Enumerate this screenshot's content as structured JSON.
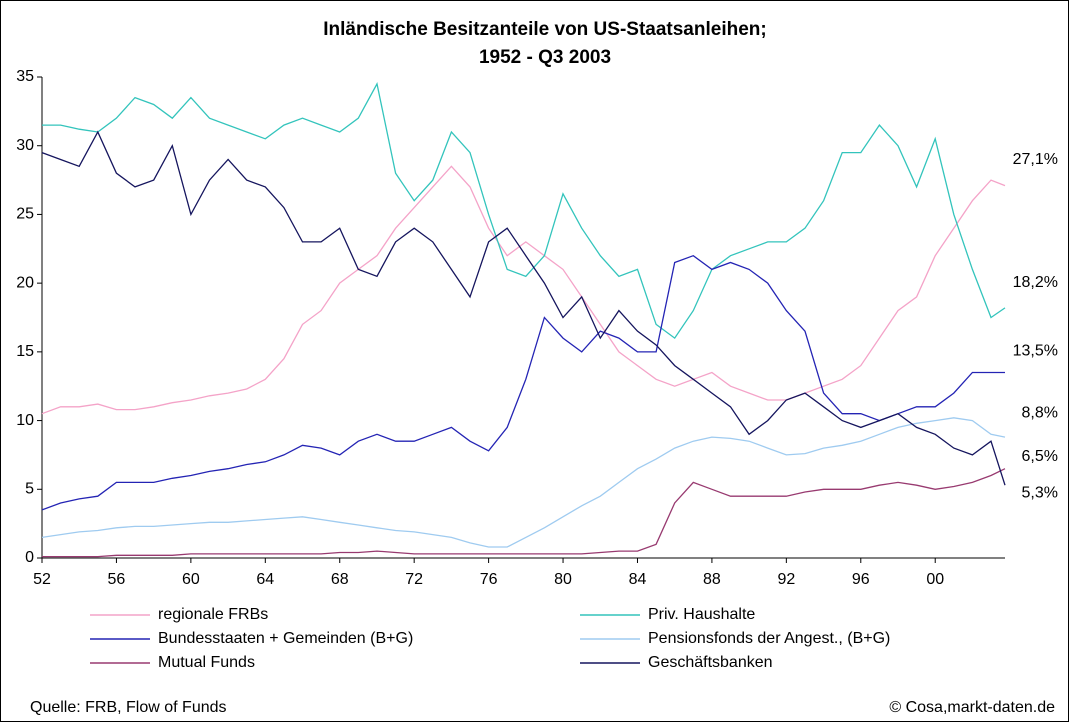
{
  "chart_data": {
    "type": "line",
    "title": "Inländische Besitzanteile von US-Staatsanleihen;",
    "subtitle": "1952 - Q3 2003",
    "source": "Quelle: FRB, Flow of Funds",
    "credit": "© Cosa,markt-daten.de",
    "x": [
      1952,
      1953,
      1954,
      1955,
      1956,
      1957,
      1958,
      1959,
      1960,
      1961,
      1962,
      1963,
      1964,
      1965,
      1966,
      1967,
      1968,
      1969,
      1970,
      1971,
      1972,
      1973,
      1974,
      1975,
      1976,
      1977,
      1978,
      1979,
      1980,
      1981,
      1982,
      1983,
      1984,
      1985,
      1986,
      1987,
      1988,
      1989,
      1990,
      1991,
      1992,
      1993,
      1994,
      1995,
      1996,
      1997,
      1998,
      1999,
      2000,
      2001,
      2002,
      2003,
      2003.75
    ],
    "xlim": [
      1952,
      2003.75
    ],
    "xticks": [
      {
        "value": 1952,
        "label": "52"
      },
      {
        "value": 1956,
        "label": "56"
      },
      {
        "value": 1960,
        "label": "60"
      },
      {
        "value": 1964,
        "label": "64"
      },
      {
        "value": 1968,
        "label": "68"
      },
      {
        "value": 1972,
        "label": "72"
      },
      {
        "value": 1976,
        "label": "76"
      },
      {
        "value": 1980,
        "label": "80"
      },
      {
        "value": 1984,
        "label": "84"
      },
      {
        "value": 1988,
        "label": "88"
      },
      {
        "value": 1992,
        "label": "92"
      },
      {
        "value": 1996,
        "label": "96"
      },
      {
        "value": 2000,
        "label": "00"
      }
    ],
    "ylim": [
      0,
      35
    ],
    "yticks": [
      0,
      5,
      10,
      15,
      20,
      25,
      30,
      35
    ],
    "grid": false,
    "series": [
      {
        "name": "regionale FRBs",
        "color": "#f4a3c8",
        "end_label": "27,1%",
        "values": [
          10.5,
          11,
          11,
          11.2,
          10.8,
          10.8,
          11,
          11.3,
          11.5,
          11.8,
          12,
          12.3,
          13,
          14.5,
          17,
          18,
          20,
          21,
          22,
          24,
          25.5,
          27,
          28.5,
          27,
          24,
          22,
          23,
          22,
          21,
          19,
          17,
          15,
          14,
          13,
          12.5,
          13,
          13.5,
          12.5,
          12,
          11.5,
          11.5,
          12,
          12.5,
          13,
          14,
          16,
          18,
          19,
          22,
          24,
          26,
          27.5,
          27.1
        ]
      },
      {
        "name": "Priv. Haushalte",
        "color": "#33c4bc",
        "end_label": "18,2%",
        "values": [
          31.5,
          31.5,
          31.2,
          31,
          32,
          33.5,
          33,
          32,
          33.5,
          32,
          31.5,
          31,
          30.5,
          31.5,
          32,
          31.5,
          31,
          32,
          34.5,
          28,
          26,
          27.5,
          31,
          29.5,
          25,
          21,
          20.5,
          22,
          26.5,
          24,
          22,
          20.5,
          21,
          17,
          16,
          18,
          21,
          22,
          22.5,
          23,
          23,
          24,
          26,
          29.5,
          29.5,
          31.5,
          30,
          27,
          30.5,
          25,
          21,
          17.5,
          18.2
        ]
      },
      {
        "name": "Bundesstaaten + Gemeinden (B+G)",
        "color": "#2424b4",
        "end_label": "13,5%",
        "values": [
          3.5,
          4,
          4.3,
          4.5,
          5.5,
          5.5,
          5.5,
          5.8,
          6,
          6.3,
          6.5,
          6.8,
          7,
          7.5,
          8.2,
          8,
          7.5,
          8.5,
          9,
          8.5,
          8.5,
          9,
          9.5,
          8.5,
          7.8,
          9.5,
          13,
          17.5,
          16,
          15,
          16.5,
          16,
          15,
          15,
          21.5,
          22,
          21,
          21.5,
          21,
          20,
          18,
          16.5,
          12,
          10.5,
          10.5,
          10,
          10.5,
          11,
          11,
          12,
          13.5,
          13.5,
          13.5
        ]
      },
      {
        "name": "Pensionsfonds der Angest., (B+G)",
        "color": "#9fcbf0",
        "end_label": "8,8%",
        "values": [
          1.5,
          1.7,
          1.9,
          2,
          2.2,
          2.3,
          2.3,
          2.4,
          2.5,
          2.6,
          2.6,
          2.7,
          2.8,
          2.9,
          3,
          2.8,
          2.6,
          2.4,
          2.2,
          2,
          1.9,
          1.7,
          1.5,
          1.1,
          0.8,
          0.8,
          1.5,
          2.2,
          3,
          3.8,
          4.5,
          5.5,
          6.5,
          7.2,
          8,
          8.5,
          8.8,
          8.7,
          8.5,
          8,
          7.5,
          7.6,
          8,
          8.2,
          8.5,
          9,
          9.5,
          9.8,
          10,
          10.2,
          10,
          9,
          8.8
        ]
      },
      {
        "name": "Mutual Funds",
        "color": "#983a70",
        "end_label": "6,5%",
        "values": [
          0.1,
          0.1,
          0.1,
          0.1,
          0.2,
          0.2,
          0.2,
          0.2,
          0.3,
          0.3,
          0.3,
          0.3,
          0.3,
          0.3,
          0.3,
          0.3,
          0.4,
          0.4,
          0.5,
          0.4,
          0.3,
          0.3,
          0.3,
          0.3,
          0.3,
          0.3,
          0.3,
          0.3,
          0.3,
          0.3,
          0.4,
          0.5,
          0.5,
          1,
          4,
          5.5,
          5,
          4.5,
          4.5,
          4.5,
          4.5,
          4.8,
          5,
          5,
          5,
          5.3,
          5.5,
          5.3,
          5,
          5.2,
          5.5,
          6,
          6.5
        ]
      },
      {
        "name": "Geschäftsbanken",
        "color": "#15155e",
        "end_label": "5,3%",
        "values": [
          29.5,
          29,
          28.5,
          31,
          28,
          27,
          27.5,
          30,
          25,
          27.5,
          29,
          27.5,
          27,
          25.5,
          23,
          23,
          24,
          21,
          20.5,
          23,
          24,
          23,
          21,
          19,
          23,
          24,
          22,
          20,
          17.5,
          19,
          16,
          18,
          16.5,
          15.5,
          14,
          13,
          12,
          11,
          9,
          10,
          11.5,
          12,
          11,
          10,
          9.5,
          10,
          10.5,
          9.5,
          9,
          8,
          7.5,
          8.5,
          5.3
        ]
      }
    ]
  }
}
